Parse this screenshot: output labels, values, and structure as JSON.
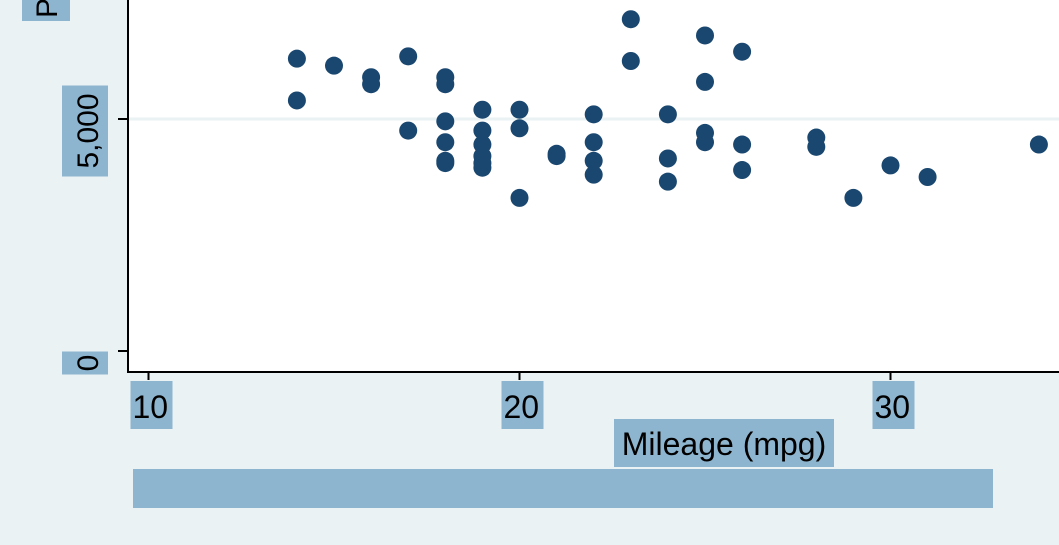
{
  "chart_data": {
    "type": "scatter",
    "title": "",
    "xlabel": "Mileage (mpg)",
    "ylabel": "Price",
    "ylabel_visible": "P",
    "xlim": [
      10,
      34.5
    ],
    "ylim": [
      0,
      8100
    ],
    "x_ticks": [
      10,
      20,
      30
    ],
    "x_tick_labels": [
      "10",
      "20",
      "30"
    ],
    "y_ticks": [
      0,
      5000
    ],
    "y_tick_labels": [
      "0",
      "5,000"
    ],
    "gridlines_y": [
      5000
    ],
    "grid": true,
    "legend": "none",
    "colors": {
      "marker": "#1a476f",
      "background": "#eaf2f3",
      "plot_background": "#ffffff",
      "gridline": "#eaf2f3",
      "label_highlight": "#8db5cf",
      "axis": "#000000"
    },
    "series": [
      {
        "x": [
          14,
          14,
          15,
          16,
          16,
          17,
          17,
          18,
          18,
          18,
          18,
          18,
          18,
          19,
          19,
          19,
          19,
          19,
          19,
          20,
          20,
          20,
          21,
          21,
          22,
          22,
          22,
          22,
          23,
          23,
          24,
          24,
          24,
          25,
          25,
          25,
          25,
          26,
          26,
          26,
          28,
          28,
          29,
          30,
          31,
          34
        ],
        "y": [
          6300,
          5400,
          6150,
          5900,
          5750,
          6350,
          4750,
          5900,
          5750,
          4950,
          4500,
          4100,
          4050,
          5200,
          4750,
          4450,
          4200,
          4050,
          3950,
          5200,
          4800,
          3300,
          4250,
          4200,
          4500,
          4100,
          3800,
          5100,
          7150,
          6250,
          5100,
          4150,
          3650,
          6800,
          5800,
          4700,
          4500,
          6450,
          4450,
          3900,
          4600,
          4400,
          3300,
          4000,
          3750,
          4450
        ]
      }
    ]
  }
}
